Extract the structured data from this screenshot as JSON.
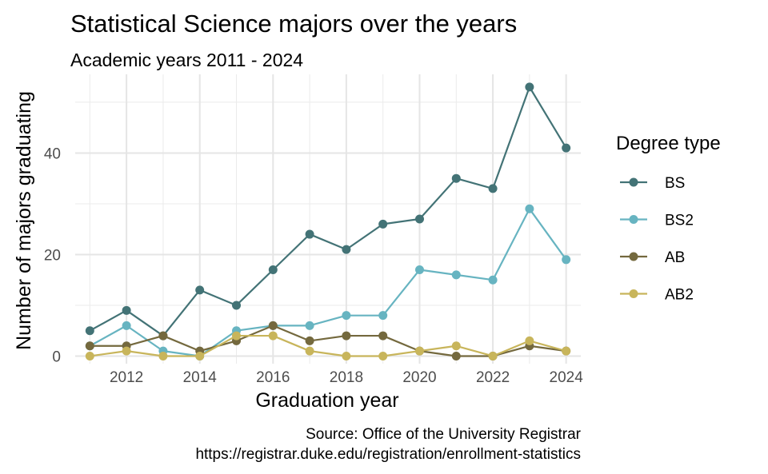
{
  "chart_data": {
    "type": "line",
    "title": "Statistical Science majors over the years",
    "subtitle": "Academic years 2011 - 2024",
    "xlabel": "Graduation year",
    "ylabel": "Number of majors graduating",
    "caption_lines": [
      "Source: Office of the University Registrar",
      "https://registrar.duke.edu/registration/enrollment-statistics"
    ],
    "legend_title": "Degree type",
    "legend_position": "right",
    "grid": true,
    "x": [
      2011,
      2012,
      2013,
      2014,
      2015,
      2016,
      2017,
      2018,
      2019,
      2020,
      2021,
      2022,
      2023,
      2024
    ],
    "xlim": [
      2010.6,
      2024.4
    ],
    "ylim": [
      -1.5,
      55.5
    ],
    "x_ticks": [
      2012,
      2014,
      2016,
      2018,
      2020,
      2022,
      2024
    ],
    "y_ticks": [
      0,
      20,
      40
    ],
    "series": [
      {
        "name": "BS",
        "color": "#437376",
        "values": [
          5,
          9,
          4,
          13,
          10,
          17,
          24,
          21,
          26,
          27,
          35,
          33,
          53,
          41
        ]
      },
      {
        "name": "BS2",
        "color": "#67B4C1",
        "values": [
          2,
          6,
          1,
          0,
          5,
          6,
          6,
          8,
          8,
          17,
          16,
          15,
          29,
          19
        ]
      },
      {
        "name": "AB",
        "color": "#74693E",
        "values": [
          2,
          2,
          4,
          1,
          3,
          6,
          3,
          4,
          4,
          1,
          0,
          0,
          2,
          1
        ]
      },
      {
        "name": "AB2",
        "color": "#C8B55B",
        "values": [
          0,
          1,
          0,
          0,
          4,
          4,
          1,
          0,
          0,
          1,
          2,
          0,
          3,
          1
        ]
      }
    ]
  }
}
